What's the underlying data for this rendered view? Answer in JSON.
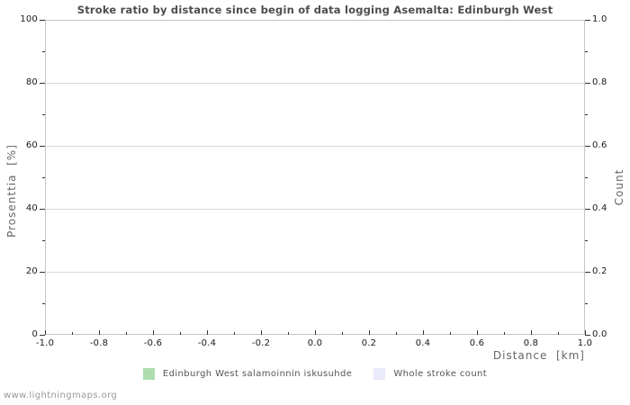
{
  "title": "Stroke ratio by distance since begin of data logging Asemalta: Edinburgh West",
  "watermark": "www.lightningmaps.org",
  "chart_data": {
    "type": "line",
    "title": "Stroke ratio by distance since begin of data logging Asemalta: Edinburgh West",
    "empty": true,
    "grid": "horizontal-only",
    "legend_position": "bottom-center",
    "x_axis": {
      "label": "Distance  [km]",
      "range": [
        -1.0,
        1.0
      ],
      "ticks": [
        -1.0,
        -0.8,
        -0.6,
        -0.4,
        -0.2,
        0.0,
        0.2,
        0.4,
        0.6,
        0.8,
        1.0
      ],
      "tick_labels": [
        "-1.0",
        "-0.8",
        "-0.6",
        "-0.4",
        "-0.2",
        "0.0",
        "0.2",
        "0.4",
        "0.6",
        "0.8",
        "1.0"
      ],
      "minor_ticks": [
        -0.9,
        -0.7,
        -0.5,
        -0.3,
        -0.1,
        0.1,
        0.3,
        0.5,
        0.7,
        0.9
      ]
    },
    "y_axis_left": {
      "label": "Prosenttia  [%]",
      "range": [
        0,
        100
      ],
      "ticks": [
        0,
        20,
        40,
        60,
        80,
        100
      ],
      "tick_labels": [
        "0",
        "20",
        "40",
        "60",
        "80",
        "100"
      ],
      "minor_ticks": [
        10,
        30,
        50,
        70,
        90
      ]
    },
    "y_axis_right": {
      "label": "Count",
      "range": [
        0.0,
        1.0
      ],
      "ticks": [
        0.0,
        0.2,
        0.4,
        0.6,
        0.8,
        1.0
      ],
      "tick_labels": [
        "0.0",
        "0.2",
        "0.4",
        "0.6",
        "0.8",
        "1.0"
      ],
      "minor_ticks": [
        0.1,
        0.3,
        0.5,
        0.7,
        0.9
      ]
    },
    "series": [
      {
        "name": "Edinburgh West salamoinnin iskusuhde",
        "color": "#aedcae",
        "values": []
      },
      {
        "name": "Whole stroke count",
        "color": "#eaeafa",
        "values": []
      }
    ],
    "colors": {
      "grid": "#d8d8d8",
      "plot_border": "#c4c4c4",
      "tick": "#333333",
      "tick_label": "#1a1a1a",
      "axis_title": "#666666",
      "title": "#4d4d4d",
      "legend_text": "#555555",
      "watermark": "#999999",
      "background": "#ffffff"
    }
  }
}
